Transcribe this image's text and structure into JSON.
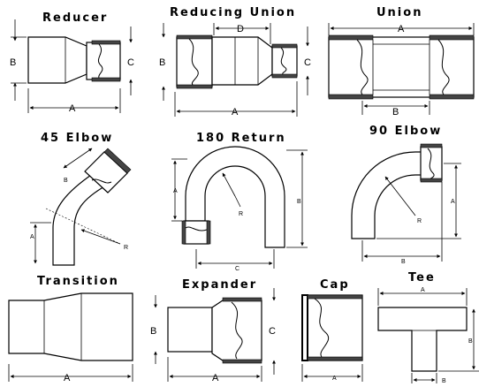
{
  "fittings": [
    {
      "id": "reducer",
      "title": "Reducer",
      "dims": {
        "a": "A",
        "b": "B",
        "c": "C"
      }
    },
    {
      "id": "reducing-union",
      "title": "Reducing Union",
      "dims": {
        "a": "A",
        "b": "B",
        "c": "C",
        "d": "D"
      }
    },
    {
      "id": "union",
      "title": "Union",
      "dims": {
        "a": "A",
        "b": "B"
      }
    },
    {
      "id": "elbow-45",
      "title": "45 Elbow",
      "dims": {
        "a": "A",
        "b": "B",
        "r": "R"
      }
    },
    {
      "id": "return-180",
      "title": "180 Return",
      "dims": {
        "a": "A",
        "b": "B",
        "c": "C",
        "r": "R"
      }
    },
    {
      "id": "elbow-90",
      "title": "90 Elbow",
      "dims": {
        "a": "A",
        "b": "B",
        "r": "R"
      }
    },
    {
      "id": "transition",
      "title": "Transition",
      "dims": {
        "a": "A"
      }
    },
    {
      "id": "expander",
      "title": "Expander",
      "dims": {
        "a": "A",
        "b": "B",
        "c": "C"
      }
    },
    {
      "id": "cap",
      "title": "Cap",
      "dims": {
        "a": "A"
      }
    },
    {
      "id": "tee",
      "title": "Tee",
      "dims": {
        "a": "A",
        "b": "B",
        "c": "B"
      }
    }
  ]
}
